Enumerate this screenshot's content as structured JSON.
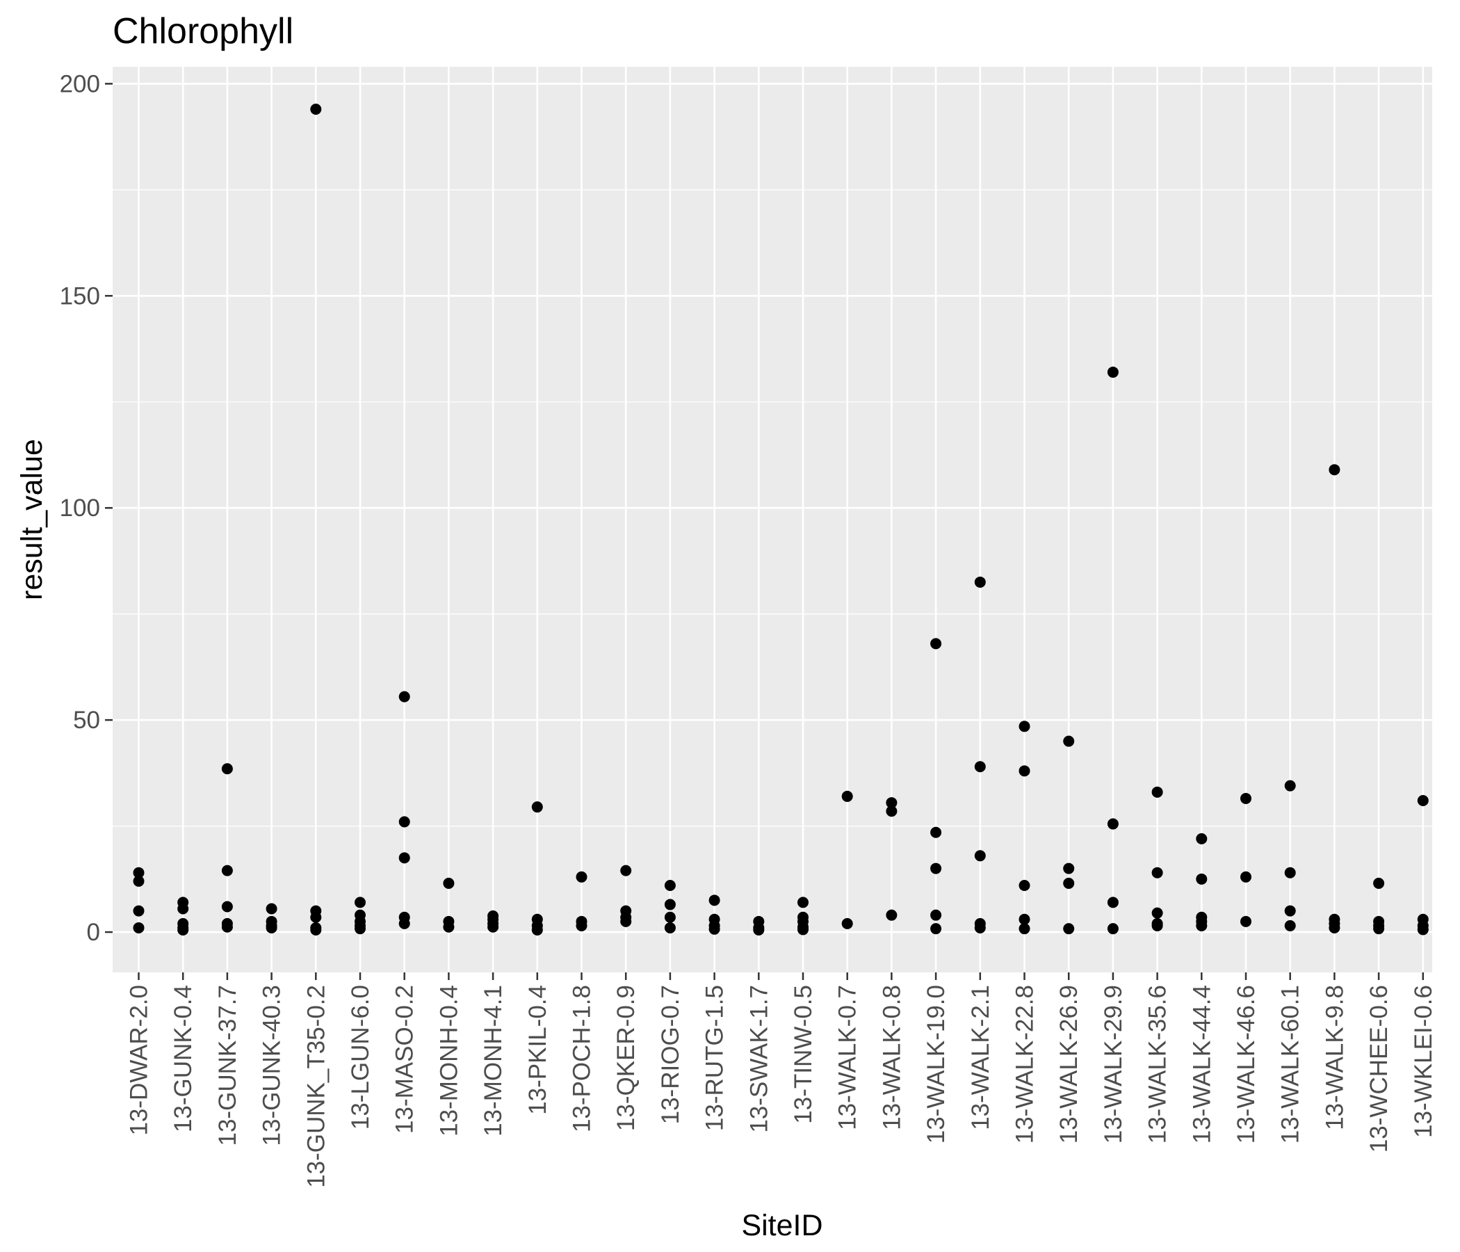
{
  "chart_data": {
    "type": "scatter",
    "title": "Chlorophyll",
    "xlabel": "SiteID",
    "ylabel": "result_value",
    "ylim": [
      -9.5,
      204
    ],
    "y_ticks": [
      "0",
      "50",
      "100",
      "150",
      "200"
    ],
    "grid": true,
    "background": "#ebebeb",
    "point_color": "#000000",
    "categories": [
      "13-DWAR-2.0",
      "13-GUNK-0.4",
      "13-GUNK-37.7",
      "13-GUNK-40.3",
      "13-GUNK_T35-0.2",
      "13-LGUN-6.0",
      "13-MASO-0.2",
      "13-MONH-0.4",
      "13-MONH-4.1",
      "13-PKIL-0.4",
      "13-POCH-1.8",
      "13-QKER-0.9",
      "13-RIOG-0.7",
      "13-RUTG-1.5",
      "13-SWAK-1.7",
      "13-TINW-0.5",
      "13-WALK-0.7",
      "13-WALK-0.8",
      "13-WALK-19.0",
      "13-WALK-2.1",
      "13-WALK-22.8",
      "13-WALK-26.9",
      "13-WALK-29.9",
      "13-WALK-35.6",
      "13-WALK-44.4",
      "13-WALK-46.6",
      "13-WALK-60.1",
      "13-WALK-9.8",
      "13-WCHEE-0.6",
      "13-WKLEI-0.6"
    ],
    "points": [
      [
        "13-DWAR-2.0",
        14
      ],
      [
        "13-DWAR-2.0",
        12
      ],
      [
        "13-DWAR-2.0",
        5
      ],
      [
        "13-DWAR-2.0",
        1
      ],
      [
        "13-GUNK-0.4",
        7
      ],
      [
        "13-GUNK-0.4",
        5.5
      ],
      [
        "13-GUNK-0.4",
        2
      ],
      [
        "13-GUNK-0.4",
        1
      ],
      [
        "13-GUNK-0.4",
        0.5
      ],
      [
        "13-GUNK-37.7",
        38.5
      ],
      [
        "13-GUNK-37.7",
        14.5
      ],
      [
        "13-GUNK-37.7",
        6
      ],
      [
        "13-GUNK-37.7",
        2
      ],
      [
        "13-GUNK-37.7",
        1.2
      ],
      [
        "13-GUNK-40.3",
        5.5
      ],
      [
        "13-GUNK-40.3",
        2.5
      ],
      [
        "13-GUNK-40.3",
        1.5
      ],
      [
        "13-GUNK-40.3",
        1
      ],
      [
        "13-GUNK_T35-0.2",
        194
      ],
      [
        "13-GUNK_T35-0.2",
        5
      ],
      [
        "13-GUNK_T35-0.2",
        3.5
      ],
      [
        "13-GUNK_T35-0.2",
        1
      ],
      [
        "13-GUNK_T35-0.2",
        0.5
      ],
      [
        "13-LGUN-6.0",
        7
      ],
      [
        "13-LGUN-6.0",
        4
      ],
      [
        "13-LGUN-6.0",
        2.5
      ],
      [
        "13-LGUN-6.0",
        1.5
      ],
      [
        "13-LGUN-6.0",
        0.8
      ],
      [
        "13-MASO-0.2",
        55.5
      ],
      [
        "13-MASO-0.2",
        26
      ],
      [
        "13-MASO-0.2",
        17.5
      ],
      [
        "13-MASO-0.2",
        3.5
      ],
      [
        "13-MASO-0.2",
        2
      ],
      [
        "13-MONH-0.4",
        11.5
      ],
      [
        "13-MONH-0.4",
        2.5
      ],
      [
        "13-MONH-0.4",
        1.2
      ],
      [
        "13-MONH-4.1",
        3.8
      ],
      [
        "13-MONH-4.1",
        3
      ],
      [
        "13-MONH-4.1",
        2
      ],
      [
        "13-MONH-4.1",
        1.2
      ],
      [
        "13-PKIL-0.4",
        29.5
      ],
      [
        "13-PKIL-0.4",
        3
      ],
      [
        "13-PKIL-0.4",
        1.5
      ],
      [
        "13-PKIL-0.4",
        0.5
      ],
      [
        "13-POCH-1.8",
        13
      ],
      [
        "13-POCH-1.8",
        2.5
      ],
      [
        "13-POCH-1.8",
        1.5
      ],
      [
        "13-QKER-0.9",
        14.5
      ],
      [
        "13-QKER-0.9",
        5
      ],
      [
        "13-QKER-0.9",
        3.5
      ],
      [
        "13-QKER-0.9",
        2.5
      ],
      [
        "13-RIOG-0.7",
        11
      ],
      [
        "13-RIOG-0.7",
        6.5
      ],
      [
        "13-RIOG-0.7",
        3.5
      ],
      [
        "13-RIOG-0.7",
        1
      ],
      [
        "13-RUTG-1.5",
        7.5
      ],
      [
        "13-RUTG-1.5",
        3
      ],
      [
        "13-RUTG-1.5",
        1.5
      ],
      [
        "13-RUTG-1.5",
        0.7
      ],
      [
        "13-SWAK-1.7",
        2.5
      ],
      [
        "13-SWAK-1.7",
        1
      ],
      [
        "13-SWAK-1.7",
        0.5
      ],
      [
        "13-TINW-0.5",
        7
      ],
      [
        "13-TINW-0.5",
        3.5
      ],
      [
        "13-TINW-0.5",
        2.5
      ],
      [
        "13-TINW-0.5",
        1.2
      ],
      [
        "13-TINW-0.5",
        0.6
      ],
      [
        "13-WALK-0.7",
        32
      ],
      [
        "13-WALK-0.7",
        2
      ],
      [
        "13-WALK-0.8",
        30.5
      ],
      [
        "13-WALK-0.8",
        28.5
      ],
      [
        "13-WALK-0.8",
        4
      ],
      [
        "13-WALK-19.0",
        68
      ],
      [
        "13-WALK-19.0",
        23.5
      ],
      [
        "13-WALK-19.0",
        15
      ],
      [
        "13-WALK-19.0",
        4
      ],
      [
        "13-WALK-19.0",
        0.8
      ],
      [
        "13-WALK-2.1",
        82.5
      ],
      [
        "13-WALK-2.1",
        39
      ],
      [
        "13-WALK-2.1",
        18
      ],
      [
        "13-WALK-2.1",
        2
      ],
      [
        "13-WALK-2.1",
        1
      ],
      [
        "13-WALK-22.8",
        48.5
      ],
      [
        "13-WALK-22.8",
        38
      ],
      [
        "13-WALK-22.8",
        11
      ],
      [
        "13-WALK-22.8",
        3
      ],
      [
        "13-WALK-22.8",
        0.8
      ],
      [
        "13-WALK-26.9",
        45
      ],
      [
        "13-WALK-26.9",
        15
      ],
      [
        "13-WALK-26.9",
        11.5
      ],
      [
        "13-WALK-26.9",
        0.8
      ],
      [
        "13-WALK-29.9",
        132
      ],
      [
        "13-WALK-29.9",
        25.5
      ],
      [
        "13-WALK-29.9",
        7
      ],
      [
        "13-WALK-29.9",
        0.8
      ],
      [
        "13-WALK-35.6",
        33
      ],
      [
        "13-WALK-35.6",
        14
      ],
      [
        "13-WALK-35.6",
        4.5
      ],
      [
        "13-WALK-35.6",
        2
      ],
      [
        "13-WALK-35.6",
        1.5
      ],
      [
        "13-WALK-44.4",
        22
      ],
      [
        "13-WALK-44.4",
        12.5
      ],
      [
        "13-WALK-44.4",
        3.5
      ],
      [
        "13-WALK-44.4",
        2.5
      ],
      [
        "13-WALK-44.4",
        1.5
      ],
      [
        "13-WALK-46.6",
        31.5
      ],
      [
        "13-WALK-46.6",
        13
      ],
      [
        "13-WALK-46.6",
        2.5
      ],
      [
        "13-WALK-60.1",
        34.5
      ],
      [
        "13-WALK-60.1",
        14
      ],
      [
        "13-WALK-60.1",
        5
      ],
      [
        "13-WALK-60.1",
        1.5
      ],
      [
        "13-WALK-9.8",
        109
      ],
      [
        "13-WALK-9.8",
        3
      ],
      [
        "13-WALK-9.8",
        2
      ],
      [
        "13-WALK-9.8",
        1
      ],
      [
        "13-WCHEE-0.6",
        11.5
      ],
      [
        "13-WCHEE-0.6",
        2.5
      ],
      [
        "13-WCHEE-0.6",
        1.5
      ],
      [
        "13-WCHEE-0.6",
        0.8
      ],
      [
        "13-WKLEI-0.6",
        31
      ],
      [
        "13-WKLEI-0.6",
        3
      ],
      [
        "13-WKLEI-0.6",
        1.5
      ],
      [
        "13-WKLEI-0.6",
        0.6
      ]
    ]
  }
}
